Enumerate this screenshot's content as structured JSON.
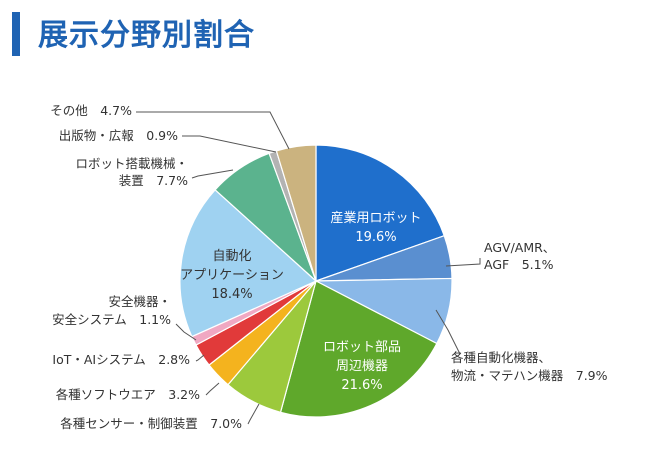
{
  "title": "展示分野別割合",
  "chart_data": {
    "type": "pie",
    "title": "展示分野別割合",
    "start": "12 o'clock",
    "direction": "clockwise",
    "slices": [
      {
        "name": "産業用ロボット",
        "value": 19.6,
        "label": "19.6%",
        "color": "#1f6fcc",
        "label_lines": [
          "産業用ロボット",
          "19.6%"
        ],
        "label_position": "inside"
      },
      {
        "name": "AGV/AMR、AGF",
        "value": 5.1,
        "label": "5.1%",
        "color": "#5a8fd0",
        "label_lines": [
          "AGV/AMR、",
          "AGF　5.1%"
        ],
        "label_position": "outside"
      },
      {
        "name": "各種自動化機器、物流・マテハン機器",
        "value": 7.9,
        "label": "7.9%",
        "color": "#8ab8e8",
        "label_lines": [
          "各種自動化機器、",
          "物流・マテハン機器　7.9%"
        ],
        "label_position": "outside"
      },
      {
        "name": "ロボット部品周辺機器",
        "value": 21.6,
        "label": "21.6%",
        "color": "#5fa82b",
        "label_lines": [
          "ロボット部品",
          "周辺機器",
          "21.6%"
        ],
        "label_position": "inside"
      },
      {
        "name": "各種センサー・制御装置",
        "value": 7.0,
        "label": "7.0%",
        "color": "#9cc93c",
        "label_lines": [
          "各種センサー・制御装置　7.0%"
        ],
        "label_position": "outside"
      },
      {
        "name": "各種ソフトウエア",
        "value": 3.2,
        "label": "3.2%",
        "color": "#f4b31e",
        "label_lines": [
          "各種ソフトウエア　3.2%"
        ],
        "label_position": "outside"
      },
      {
        "name": "IoT・AIシステム",
        "value": 2.8,
        "label": "2.8%",
        "color": "#e13a3a",
        "label_lines": [
          "IoT・AIシステム　2.8%"
        ],
        "label_position": "outside"
      },
      {
        "name": "安全機器・安全システム",
        "value": 1.1,
        "label": "1.1%",
        "color": "#f0a8c2",
        "label_lines": [
          "安全機器・",
          "安全システム　1.1%"
        ],
        "label_position": "outside"
      },
      {
        "name": "自動化アプリケーション",
        "value": 18.4,
        "label": "18.4%",
        "color": "#9fd2f1",
        "label_lines": [
          "自動化",
          "アプリケーション",
          "18.4%"
        ],
        "label_position": "inside"
      },
      {
        "name": "ロボット搭載機械・装置",
        "value": 7.7,
        "label": "7.7%",
        "color": "#5bb38e",
        "label_lines": [
          "ロボット搭載機械・",
          "装置　7.7%"
        ],
        "label_position": "outside"
      },
      {
        "name": "出版物・広報",
        "value": 0.9,
        "label": "0.9%",
        "color": "#b3b3b3",
        "label_lines": [
          "出版物・広報　0.9%"
        ],
        "label_position": "outside"
      },
      {
        "name": "その他",
        "value": 4.7,
        "label": "4.7%",
        "color": "#cbb37f",
        "label_lines": [
          "その他　4.7%"
        ],
        "label_position": "outside"
      }
    ]
  }
}
